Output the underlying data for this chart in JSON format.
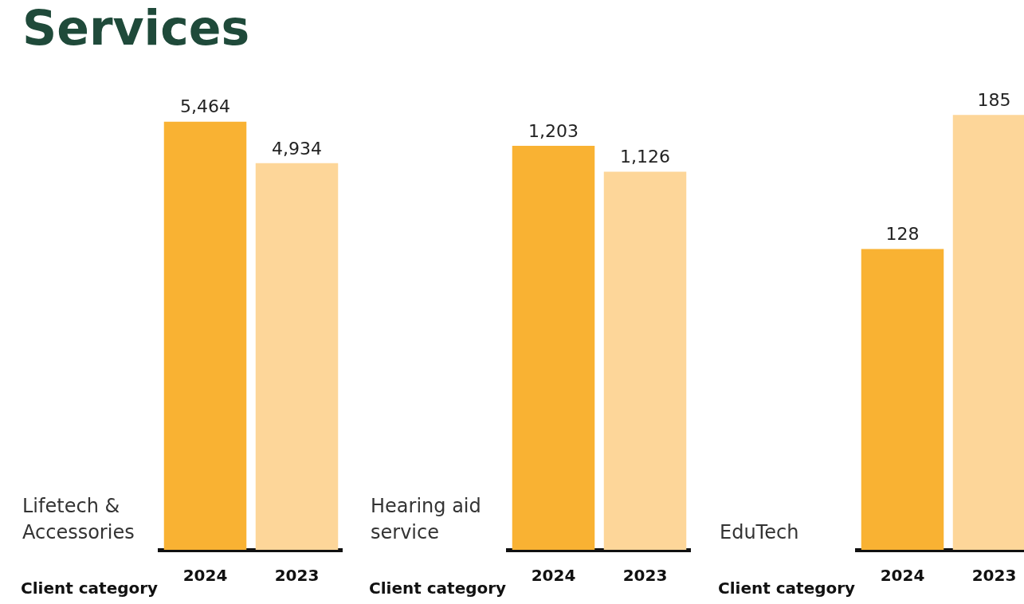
{
  "chart_data": [
    {
      "type": "bar",
      "title": "Services",
      "subtitle": "Lifetech & Accessories",
      "xlabel": "Client category",
      "categories": [
        "2024",
        "2023"
      ],
      "values": [
        5464,
        4934
      ],
      "value_labels": [
        "5,464",
        "4,934"
      ],
      "colors": [
        "#f9b233",
        "#fdd699"
      ],
      "grid": false,
      "legend": false
    },
    {
      "type": "bar",
      "subtitle": "Hearing aid service",
      "xlabel": "Client category",
      "categories": [
        "2024",
        "2023"
      ],
      "values": [
        1203,
        1126
      ],
      "value_labels": [
        "1,203",
        "1,126"
      ],
      "colors": [
        "#f9b233",
        "#fdd699"
      ],
      "grid": false,
      "legend": false
    },
    {
      "type": "bar",
      "subtitle": "EduTech",
      "xlabel": "Client category",
      "categories": [
        "2024",
        "2023"
      ],
      "values": [
        128,
        185
      ],
      "value_labels": [
        "128",
        "185"
      ],
      "colors": [
        "#f9b233",
        "#fdd699"
      ],
      "grid": false,
      "legend": false
    }
  ]
}
